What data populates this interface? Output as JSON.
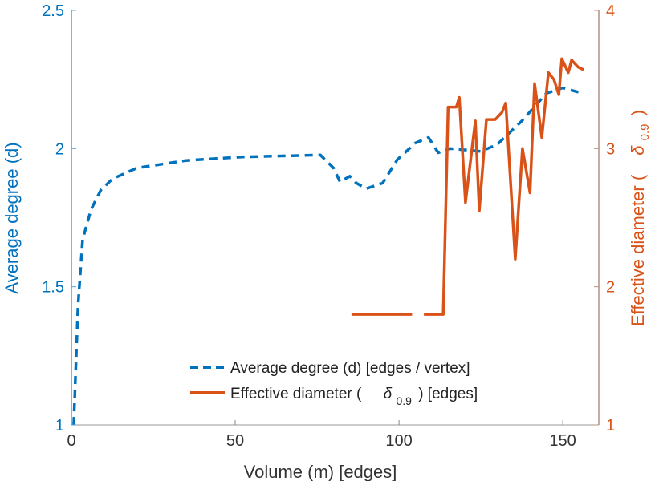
{
  "chart_data": {
    "type": "line",
    "xlabel": "Volume (m) [edges]",
    "ylabel_left": "Average degree (d)",
    "ylabel_right_prefix": "Effective diameter (",
    "ylabel_right_symbol": "δ",
    "ylabel_right_sub": "0.9",
    "ylabel_right_suffix": ")",
    "xlim": [
      0,
      161
    ],
    "ylim_left": [
      1,
      2.5
    ],
    "ylim_right": [
      1,
      4
    ],
    "xticks": [
      0,
      50,
      100,
      150
    ],
    "yticks_left": [
      1,
      1.5,
      2,
      2.5
    ],
    "yticks_left_labels": [
      "1",
      "1.5",
      "2",
      "2.5"
    ],
    "yticks_right": [
      1,
      2,
      3,
      4
    ],
    "grid": false,
    "legend_position": "bottom-center",
    "colors": {
      "left": "#0072BD",
      "right": "#D95319",
      "left_axis": "#4da3e0",
      "right_axis": "#b09080"
    },
    "series": [
      {
        "name": "Average degree (d) [edges / vertex]",
        "axis": "left",
        "style": "dashed",
        "segments": [
          [
            [
              0.7,
              1.0
            ],
            [
              2,
              1.43
            ],
            [
              3.4,
              1.67
            ],
            [
              6,
              1.78
            ],
            [
              9,
              1.85
            ],
            [
              12.5,
              1.89
            ],
            [
              20,
              1.93
            ],
            [
              35,
              1.957
            ],
            [
              52,
              1.97
            ],
            [
              76,
              1.977
            ],
            [
              80,
              1.93
            ],
            [
              82,
              1.88
            ],
            [
              85,
              1.9
            ],
            [
              87,
              1.875
            ],
            [
              90,
              1.855
            ],
            [
              95,
              1.875
            ],
            [
              99.5,
              1.96
            ],
            [
              105,
              2.02
            ],
            [
              109,
              2.04
            ],
            [
              112,
              1.985
            ],
            [
              115.5,
              2.0
            ],
            [
              125,
              1.99
            ],
            [
              130,
              2.015
            ],
            [
              137.5,
              2.1
            ],
            [
              145,
              2.2
            ],
            [
              150,
              2.22
            ],
            [
              156,
              2.2
            ]
          ]
        ]
      },
      {
        "name_prefix": "Effective diameter (",
        "name_symbol": "δ",
        "name_sub": "0.9",
        "name_suffix": ") [edges]",
        "axis": "right",
        "style": "solid",
        "segments": [
          [
            [
              85.5,
              1.8
            ],
            [
              104,
              1.8
            ]
          ],
          [
            [
              107.6,
              1.8
            ],
            [
              113.5,
              1.8
            ],
            [
              115,
              3.3
            ],
            [
              117.5,
              3.3
            ],
            [
              118.4,
              3.37
            ],
            [
              120.3,
              2.61
            ],
            [
              123.3,
              3.2
            ],
            [
              124.5,
              2.55
            ],
            [
              126.7,
              3.21
            ],
            [
              129.4,
              3.21
            ],
            [
              131.4,
              3.26
            ],
            [
              132.6,
              3.33
            ],
            [
              135.5,
              2.2
            ],
            [
              137.7,
              3.0
            ],
            [
              140,
              2.68
            ],
            [
              141.4,
              3.47
            ],
            [
              143.6,
              3.08
            ],
            [
              145.6,
              3.55
            ],
            [
              147.3,
              3.5
            ],
            [
              148.8,
              3.39
            ],
            [
              149.7,
              3.65
            ],
            [
              151.7,
              3.55
            ],
            [
              152.7,
              3.64
            ],
            [
              154.7,
              3.59
            ],
            [
              156.4,
              3.57
            ]
          ]
        ]
      }
    ]
  }
}
